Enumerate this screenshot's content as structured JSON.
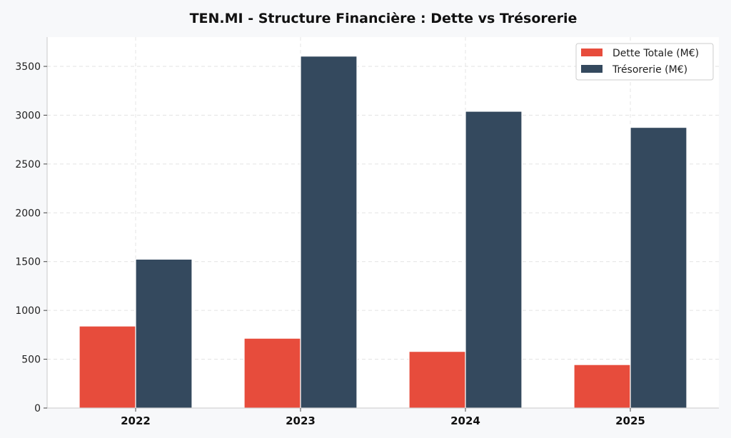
{
  "chart_data": {
    "type": "bar",
    "title": "TEN.MI - Structure Financière : Dette vs Trésorerie",
    "xlabel": "",
    "ylabel": "",
    "categories": [
      "2022",
      "2023",
      "2024",
      "2025"
    ],
    "series": [
      {
        "name": "Dette Totale (M€)",
        "values": [
          840,
          715,
          580,
          445
        ],
        "color": "#e74c3c"
      },
      {
        "name": "Trésorerie (M€)",
        "values": [
          1525,
          3605,
          3040,
          2875
        ],
        "color": "#34495e"
      }
    ],
    "ylim": [
      0,
      3800
    ],
    "yticks": [
      0,
      500,
      1000,
      1500,
      2000,
      2500,
      3000,
      3500
    ],
    "grid": true,
    "legend_position": "top-right"
  }
}
